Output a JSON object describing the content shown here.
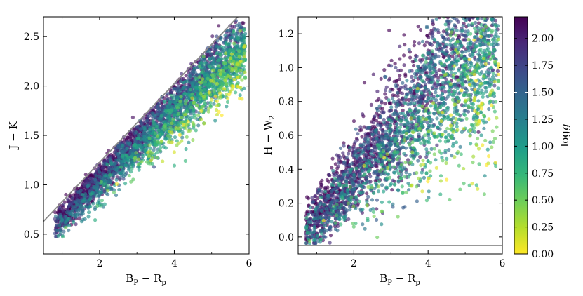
{
  "chart_data": [
    {
      "type": "scatter",
      "xlabel": "B P − R p",
      "xlabel_main": "B",
      "xlabel_sub1": "P",
      "xlabel_minus": " − R",
      "xlabel_sub2": "p",
      "ylabel_main": "J − K",
      "xlim": [
        0.5,
        6.0
      ],
      "ylim": [
        0.3,
        2.7
      ],
      "xticks": [
        2,
        4,
        6
      ],
      "yticks": [
        0.5,
        1.0,
        1.5,
        2.0,
        2.5
      ],
      "xtick_labels": [
        "2",
        "4",
        "6"
      ],
      "ytick_labels": [
        "0.5",
        "1.0",
        "1.5",
        "2.0",
        "2.5"
      ],
      "reference_line": {
        "kind": "slope",
        "x": [
          0.5,
          6.0
        ],
        "y": [
          0.63,
          2.82
        ],
        "color": "#8a8a8a"
      },
      "point_cloud": {
        "x_range": [
          0.8,
          5.9
        ],
        "relation": "y ≈ 0.28 + 0.40x (upper locus, high log g) to 0.15 + 0.34x (lower locus, low log g)",
        "color_by": "log g"
      }
    },
    {
      "type": "scatter",
      "xlabel_main": "B",
      "xlabel_sub1": "P",
      "xlabel_minus": " − R",
      "xlabel_sub2": "p",
      "ylabel_main": "H − W",
      "ylabel_sub": "2",
      "xlim": [
        0.5,
        6.0
      ],
      "ylim": [
        -0.1,
        1.3
      ],
      "xticks": [
        2,
        4,
        6
      ],
      "yticks": [
        0.0,
        0.2,
        0.4,
        0.6,
        0.8,
        1.0,
        1.2
      ],
      "xtick_labels": [
        "2",
        "4",
        "6"
      ],
      "ytick_labels": [
        "0.0",
        "0.2",
        "0.4",
        "0.6",
        "0.8",
        "1.0",
        "1.2"
      ],
      "reference_line": {
        "kind": "horizontal",
        "y": -0.05,
        "color": "#8a8a8a"
      },
      "point_cloud": {
        "x_range": [
          0.7,
          5.9
        ],
        "relation": "y ≈ 0.05 + 0.22(x − 1) with broad scatter; high log g on upper edge",
        "color_by": "log g"
      }
    }
  ],
  "colorbar": {
    "label_main": "log",
    "label_var": "g",
    "range": [
      0.0,
      2.2
    ],
    "ticks": [
      0.0,
      0.25,
      0.5,
      0.75,
      1.0,
      1.25,
      1.5,
      1.75,
      2.0
    ],
    "tick_labels": [
      "0.00",
      "0.25",
      "0.50",
      "0.75",
      "1.00",
      "1.25",
      "1.50",
      "1.75",
      "2.00"
    ],
    "colormap": "viridis",
    "colors": [
      "#fde725",
      "#b5de2b",
      "#6ece58",
      "#35b779",
      "#1f9e89",
      "#26828e",
      "#31688e",
      "#3e4989",
      "#482878",
      "#440154"
    ]
  }
}
